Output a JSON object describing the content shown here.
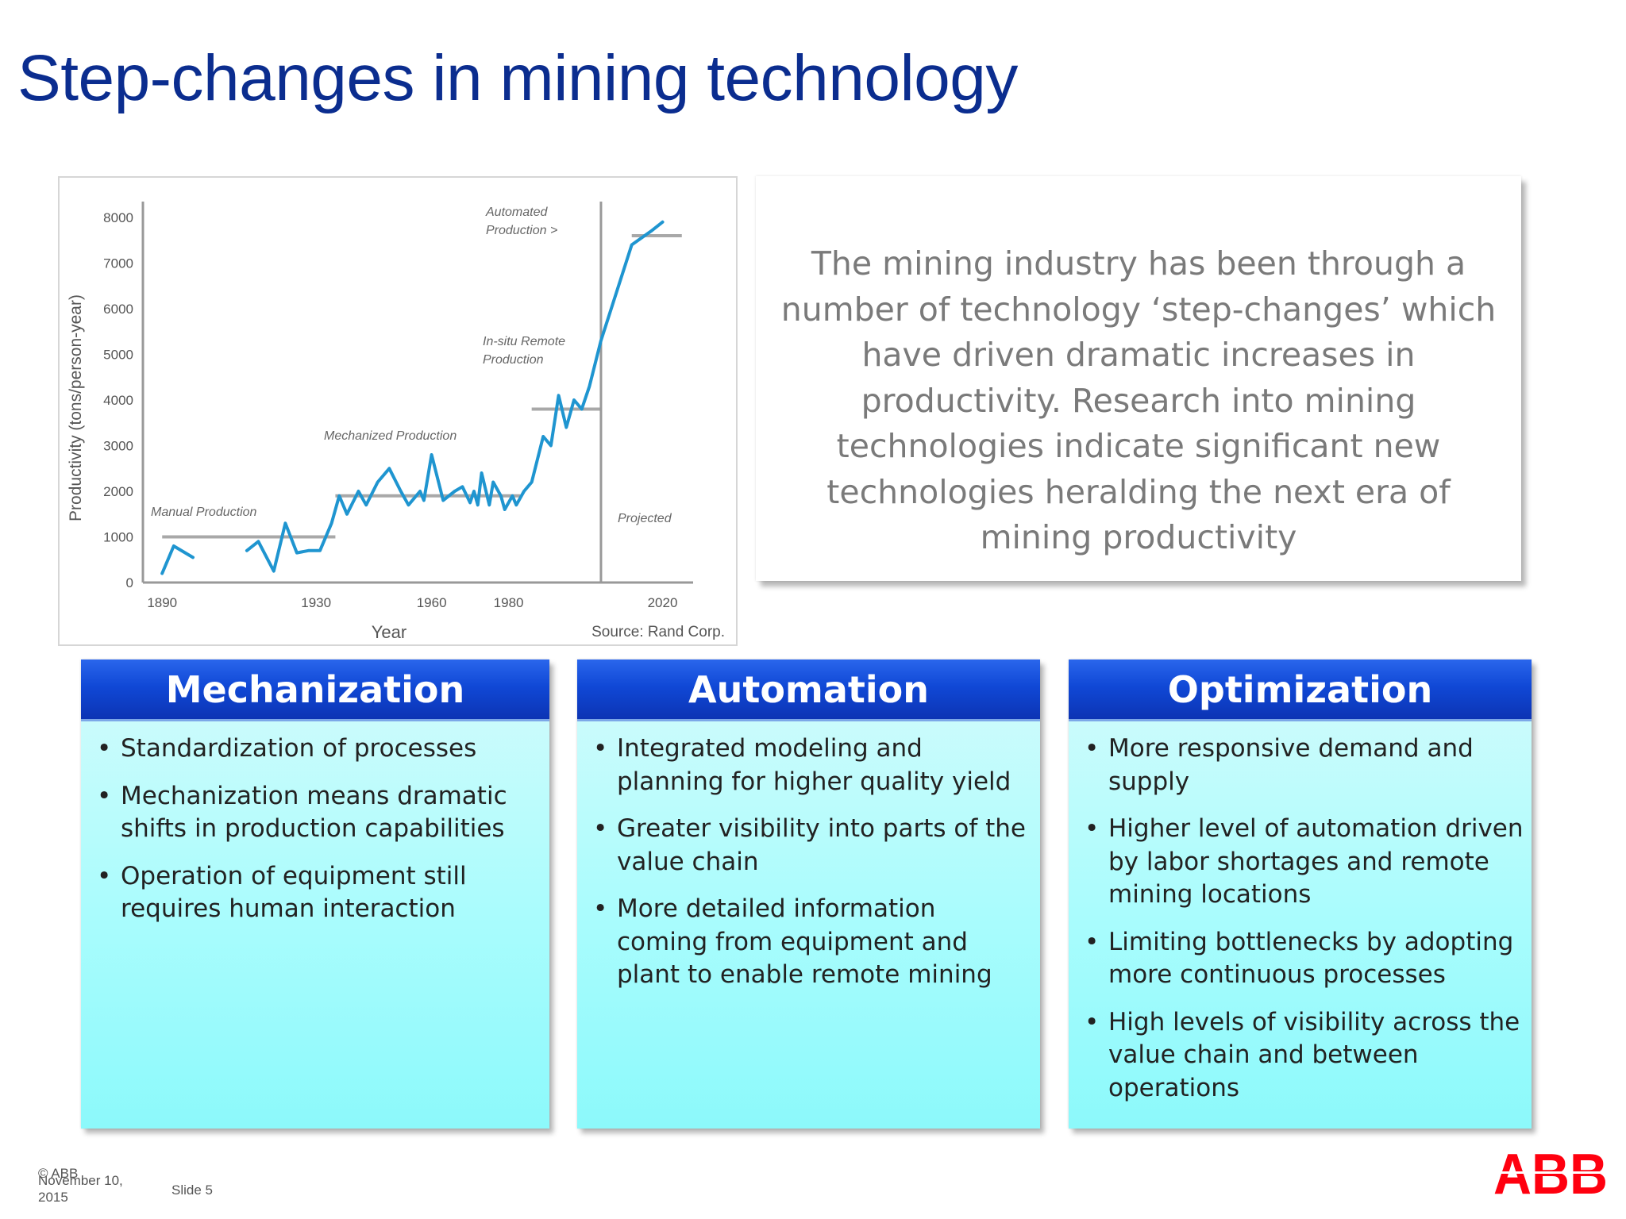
{
  "slide": {
    "title": "Step-changes in mining technology",
    "intro_text": "The mining industry has been through a number of technology ‘step-changes’ which have driven dramatic increases in productivity. Research into mining technologies indicate significant new technologies heralding the next era of mining productivity"
  },
  "chart_data": {
    "type": "line",
    "title": "",
    "xlabel": "Year",
    "ylabel": "Productivity (tons/person-year)",
    "xlim": [
      1885,
      2030
    ],
    "ylim": [
      0,
      8000
    ],
    "x_ticks": [
      "1890",
      "1930",
      "1960",
      "1980",
      "2020"
    ],
    "y_ticks": [
      "0",
      "1000",
      "2000",
      "3000",
      "4000",
      "5000",
      "6000",
      "7000",
      "8000"
    ],
    "source": "Source: Rand Corp.",
    "series": [
      {
        "name": "",
        "color": "#1f95d0",
        "segments": [
          [
            [
              1890,
              200
            ],
            [
              1893,
              800
            ],
            [
              1898,
              550
            ]
          ],
          [
            [
              1912,
              700
            ],
            [
              1915,
              900
            ],
            [
              1919,
              250
            ],
            [
              1922,
              1300
            ],
            [
              1925,
              650
            ],
            [
              1928,
              700
            ],
            [
              1931,
              700
            ],
            [
              1934,
              1300
            ],
            [
              1936,
              1900
            ],
            [
              1938,
              1500
            ],
            [
              1941,
              2000
            ],
            [
              1943,
              1700
            ],
            [
              1946,
              2200
            ],
            [
              1949,
              2500
            ],
            [
              1952,
              2000
            ],
            [
              1954,
              1700
            ],
            [
              1957,
              2000
            ],
            [
              1958,
              1800
            ],
            [
              1960,
              2800
            ],
            [
              1963,
              1800
            ],
            [
              1966,
              2000
            ],
            [
              1968,
              2100
            ],
            [
              1970,
              1750
            ],
            [
              1971,
              2000
            ],
            [
              1972,
              1700
            ],
            [
              1973,
              2400
            ],
            [
              1975,
              1700
            ],
            [
              1976,
              2200
            ],
            [
              1978,
              1900
            ],
            [
              1979,
              1600
            ],
            [
              1981,
              1900
            ],
            [
              1982,
              1700
            ],
            [
              1984,
              2000
            ],
            [
              1986,
              2200
            ],
            [
              1989,
              3200
            ],
            [
              1991,
              3000
            ],
            [
              1993,
              4100
            ],
            [
              1995,
              3400
            ],
            [
              1997,
              4000
            ],
            [
              1999,
              3800
            ],
            [
              2001,
              4300
            ],
            [
              2004,
              5300
            ],
            [
              2012,
              7400
            ],
            [
              2017,
              7700
            ],
            [
              2020,
              7900
            ]
          ]
        ]
      }
    ],
    "levels": [
      {
        "y": 1000,
        "x": [
          1890,
          1935
        ]
      },
      {
        "y": 1900,
        "x": [
          1935,
          1983
        ]
      },
      {
        "y": 3800,
        "x": [
          1986,
          2004
        ]
      },
      {
        "y": 7600,
        "x": [
          2012,
          2025
        ]
      }
    ],
    "projection_divider_x": 2004,
    "annotations": [
      {
        "text": "Manual Production"
      },
      {
        "text": "Mechanized Production"
      },
      {
        "text": "In-situ Remote"
      },
      {
        "text": "Production"
      },
      {
        "text": "Automated"
      },
      {
        "text": "Production >"
      },
      {
        "text": "Projected"
      }
    ]
  },
  "cards": [
    {
      "title": "Mechanization",
      "bullets": [
        "Standardization of processes",
        "Mechanization means dramatic shifts in production capabilities",
        "Operation of equipment still requires human interaction"
      ]
    },
    {
      "title": "Automation",
      "bullets": [
        "Integrated modeling and planning for higher quality yield",
        "Greater visibility into parts of the value chain",
        "More detailed information coming from equipment and plant to enable remote mining"
      ]
    },
    {
      "title": "Optimization",
      "bullets": [
        "More responsive demand and supply",
        "Higher level of automation driven by labor shortages and remote mining locations",
        "Limiting bottlenecks by adopting more continuous processes",
        "High levels of visibility across the value chain and between operations"
      ]
    }
  ],
  "footer": {
    "copyright": "© ABB",
    "date_line1": "November 10,",
    "date_line2": "2015",
    "slide_label": "Slide 5",
    "logo_text": "ABB",
    "logo_color": "#ff000f"
  }
}
